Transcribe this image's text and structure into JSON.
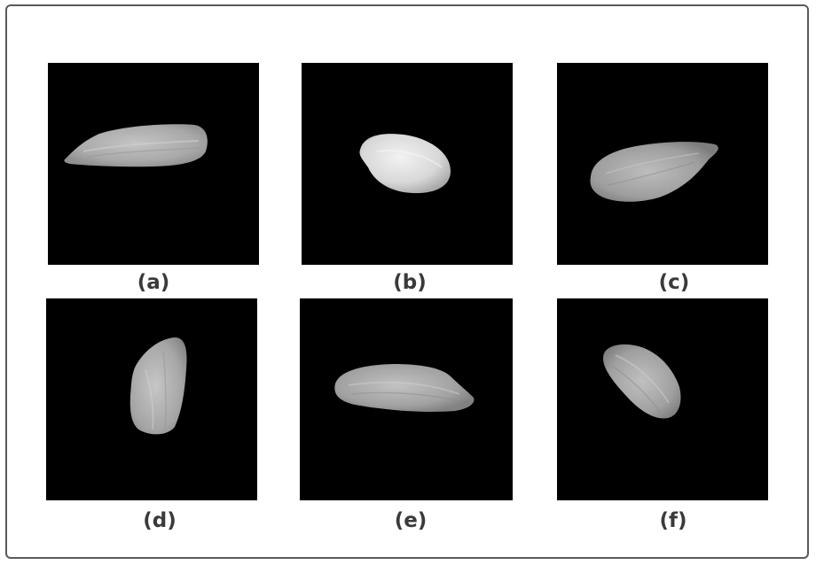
{
  "labels": {
    "a": "(a)",
    "b": "(b)",
    "c": "(c)",
    "d": "(d)",
    "e": "(e)",
    "f": "(f)"
  },
  "colors": {
    "panel_background": "#000000",
    "grain_fill": "#b8b8b8",
    "label_text": "#3a3a3a",
    "frame_border": "#5a5a5a"
  }
}
